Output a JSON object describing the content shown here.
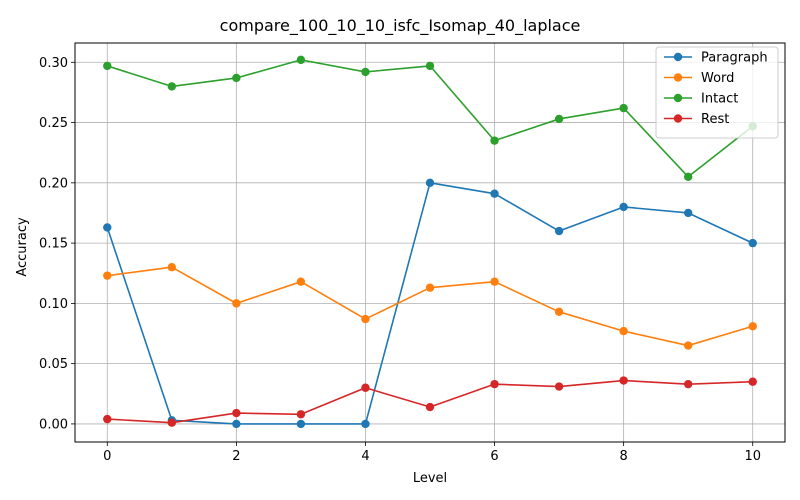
{
  "chart_data": {
    "type": "line",
    "title": "compare_100_10_10_isfc_Isomap_40_laplace",
    "xlabel": "Level",
    "ylabel": "Accuracy",
    "x": [
      0,
      1,
      2,
      3,
      4,
      5,
      6,
      7,
      8,
      9,
      10
    ],
    "xlim": [
      -0.5,
      10.5
    ],
    "ylim": [
      -0.015,
      0.316
    ],
    "xticks": [
      0,
      2,
      4,
      6,
      8,
      10
    ],
    "xtick_labels": [
      "0",
      "2",
      "4",
      "6",
      "8",
      "10"
    ],
    "yticks": [
      0.0,
      0.05,
      0.1,
      0.15,
      0.2,
      0.25,
      0.3
    ],
    "ytick_labels": [
      "0.00",
      "0.05",
      "0.10",
      "0.15",
      "0.20",
      "0.25",
      "0.30"
    ],
    "grid": true,
    "legend_position": "top-right",
    "series": [
      {
        "name": "Paragraph",
        "color": "#1f77b4",
        "values": [
          0.163,
          0.003,
          0.0,
          0.0,
          0.0,
          0.2,
          0.191,
          0.16,
          0.18,
          0.175,
          0.15
        ]
      },
      {
        "name": "Word",
        "color": "#ff7f0e",
        "values": [
          0.123,
          0.13,
          0.1,
          0.118,
          0.087,
          0.113,
          0.118,
          0.093,
          0.077,
          0.065,
          0.081
        ]
      },
      {
        "name": "Intact",
        "color": "#2ca02c",
        "values": [
          0.297,
          0.28,
          0.287,
          0.302,
          0.292,
          0.297,
          0.235,
          0.253,
          0.262,
          0.205,
          0.247
        ]
      },
      {
        "name": "Rest",
        "color": "#d62728",
        "values": [
          0.004,
          0.001,
          0.009,
          0.008,
          0.03,
          0.014,
          0.033,
          0.031,
          0.036,
          0.033,
          0.035
        ]
      }
    ]
  }
}
